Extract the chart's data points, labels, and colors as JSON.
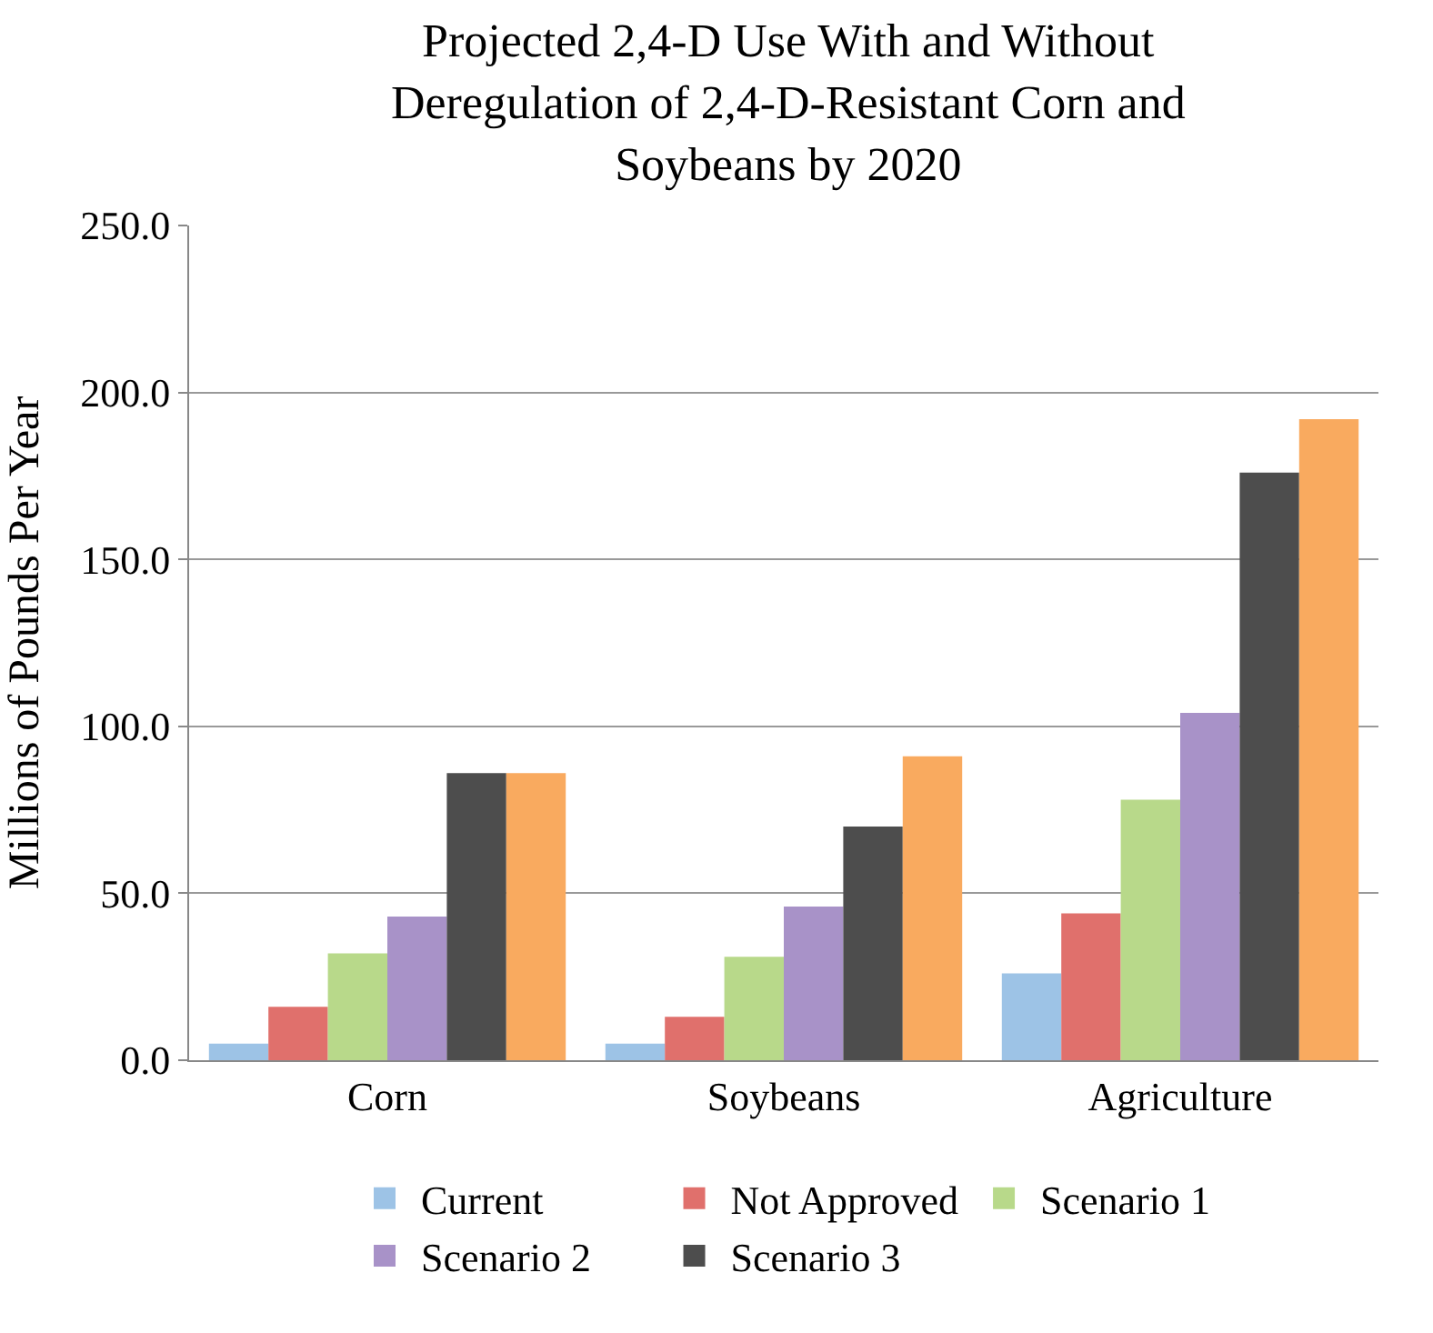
{
  "chart_data": {
    "type": "bar",
    "title": "Projected 2,4-D Use With and Without Deregulation of 2,4-D-Resistant Corn and Soybeans by 2020",
    "ylabel": "Millions of Pounds Per Year",
    "categories": [
      "Corn",
      "Soybeans",
      "Agriculture"
    ],
    "series": [
      {
        "name": "Current",
        "color": "#9dc3e6",
        "values": [
          5,
          5,
          26
        ]
      },
      {
        "name": "Not Approved",
        "color": "#e0706c",
        "values": [
          16,
          13,
          44
        ]
      },
      {
        "name": "Scenario 1",
        "color": "#b8d98a",
        "values": [
          32,
          31,
          78
        ]
      },
      {
        "name": "Scenario 2",
        "color": "#a892c8",
        "values": [
          43,
          46,
          104
        ]
      },
      {
        "name": "Scenario 3",
        "color": "#4d4d4d",
        "values": [
          86,
          70,
          176
        ]
      },
      {
        "color": "#f9aa5f",
        "values": [
          86,
          91,
          192
        ]
      }
    ],
    "ylim": [
      0,
      250
    ],
    "yticks": [
      {
        "value": 0,
        "label": "0.0"
      },
      {
        "value": 50,
        "label": "50.0"
      },
      {
        "value": 100,
        "label": "100.0"
      },
      {
        "value": 150,
        "label": "150.0"
      },
      {
        "value": 200,
        "label": "200.0"
      },
      {
        "value": 250,
        "label": "250.0"
      }
    ],
    "grid": "y",
    "legend": "bottom"
  }
}
